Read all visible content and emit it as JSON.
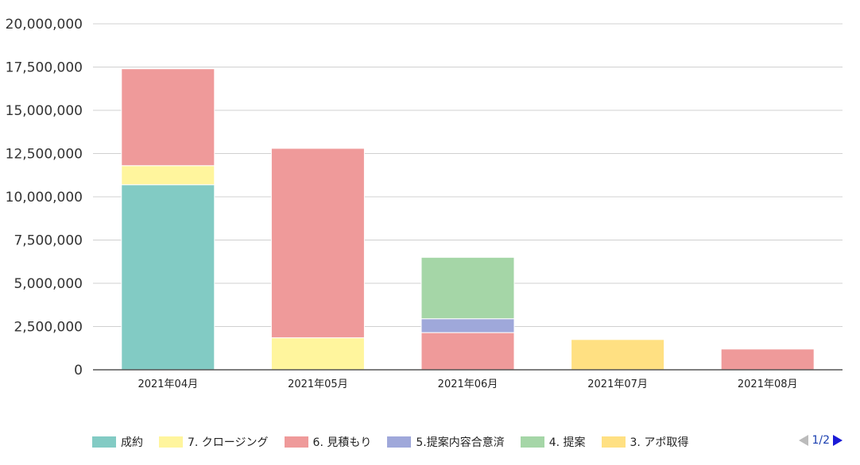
{
  "chart_data": {
    "type": "bar",
    "stacked": true,
    "categories": [
      "2021年04月",
      "2021年05月",
      "2021年06月",
      "2021年07月",
      "2021年08月"
    ],
    "ylim": [
      0,
      20000000
    ],
    "yticks": [
      "0",
      "2,500,000",
      "5,000,000",
      "7,500,000",
      "10,000,000",
      "12,500,000",
      "15,000,000",
      "17,500,000",
      "20,000,000"
    ],
    "grid": true,
    "legend_position": "bottom",
    "series": [
      {
        "name": "成約",
        "color": "#82cbc4",
        "values": [
          10700000,
          0,
          0,
          0,
          0
        ]
      },
      {
        "name": "7. クロージング",
        "color": "#fff59d",
        "values": [
          1100000,
          1850000,
          0,
          0,
          0
        ]
      },
      {
        "name": "6. 見積もり",
        "color": "#ef9a9a",
        "values": [
          5600000,
          10950000,
          2150000,
          0,
          1200000
        ]
      },
      {
        "name": "5.提案内容合意済",
        "color": "#9fa8da",
        "values": [
          0,
          0,
          800000,
          0,
          0
        ]
      },
      {
        "name": "4. 提案",
        "color": "#a5d6a7",
        "values": [
          0,
          0,
          3550000,
          0,
          0
        ]
      },
      {
        "name": "3. アポ取得",
        "color": "#ffe082",
        "values": [
          0,
          0,
          0,
          1750000,
          0
        ]
      }
    ]
  },
  "pager": {
    "text": "1/2"
  }
}
